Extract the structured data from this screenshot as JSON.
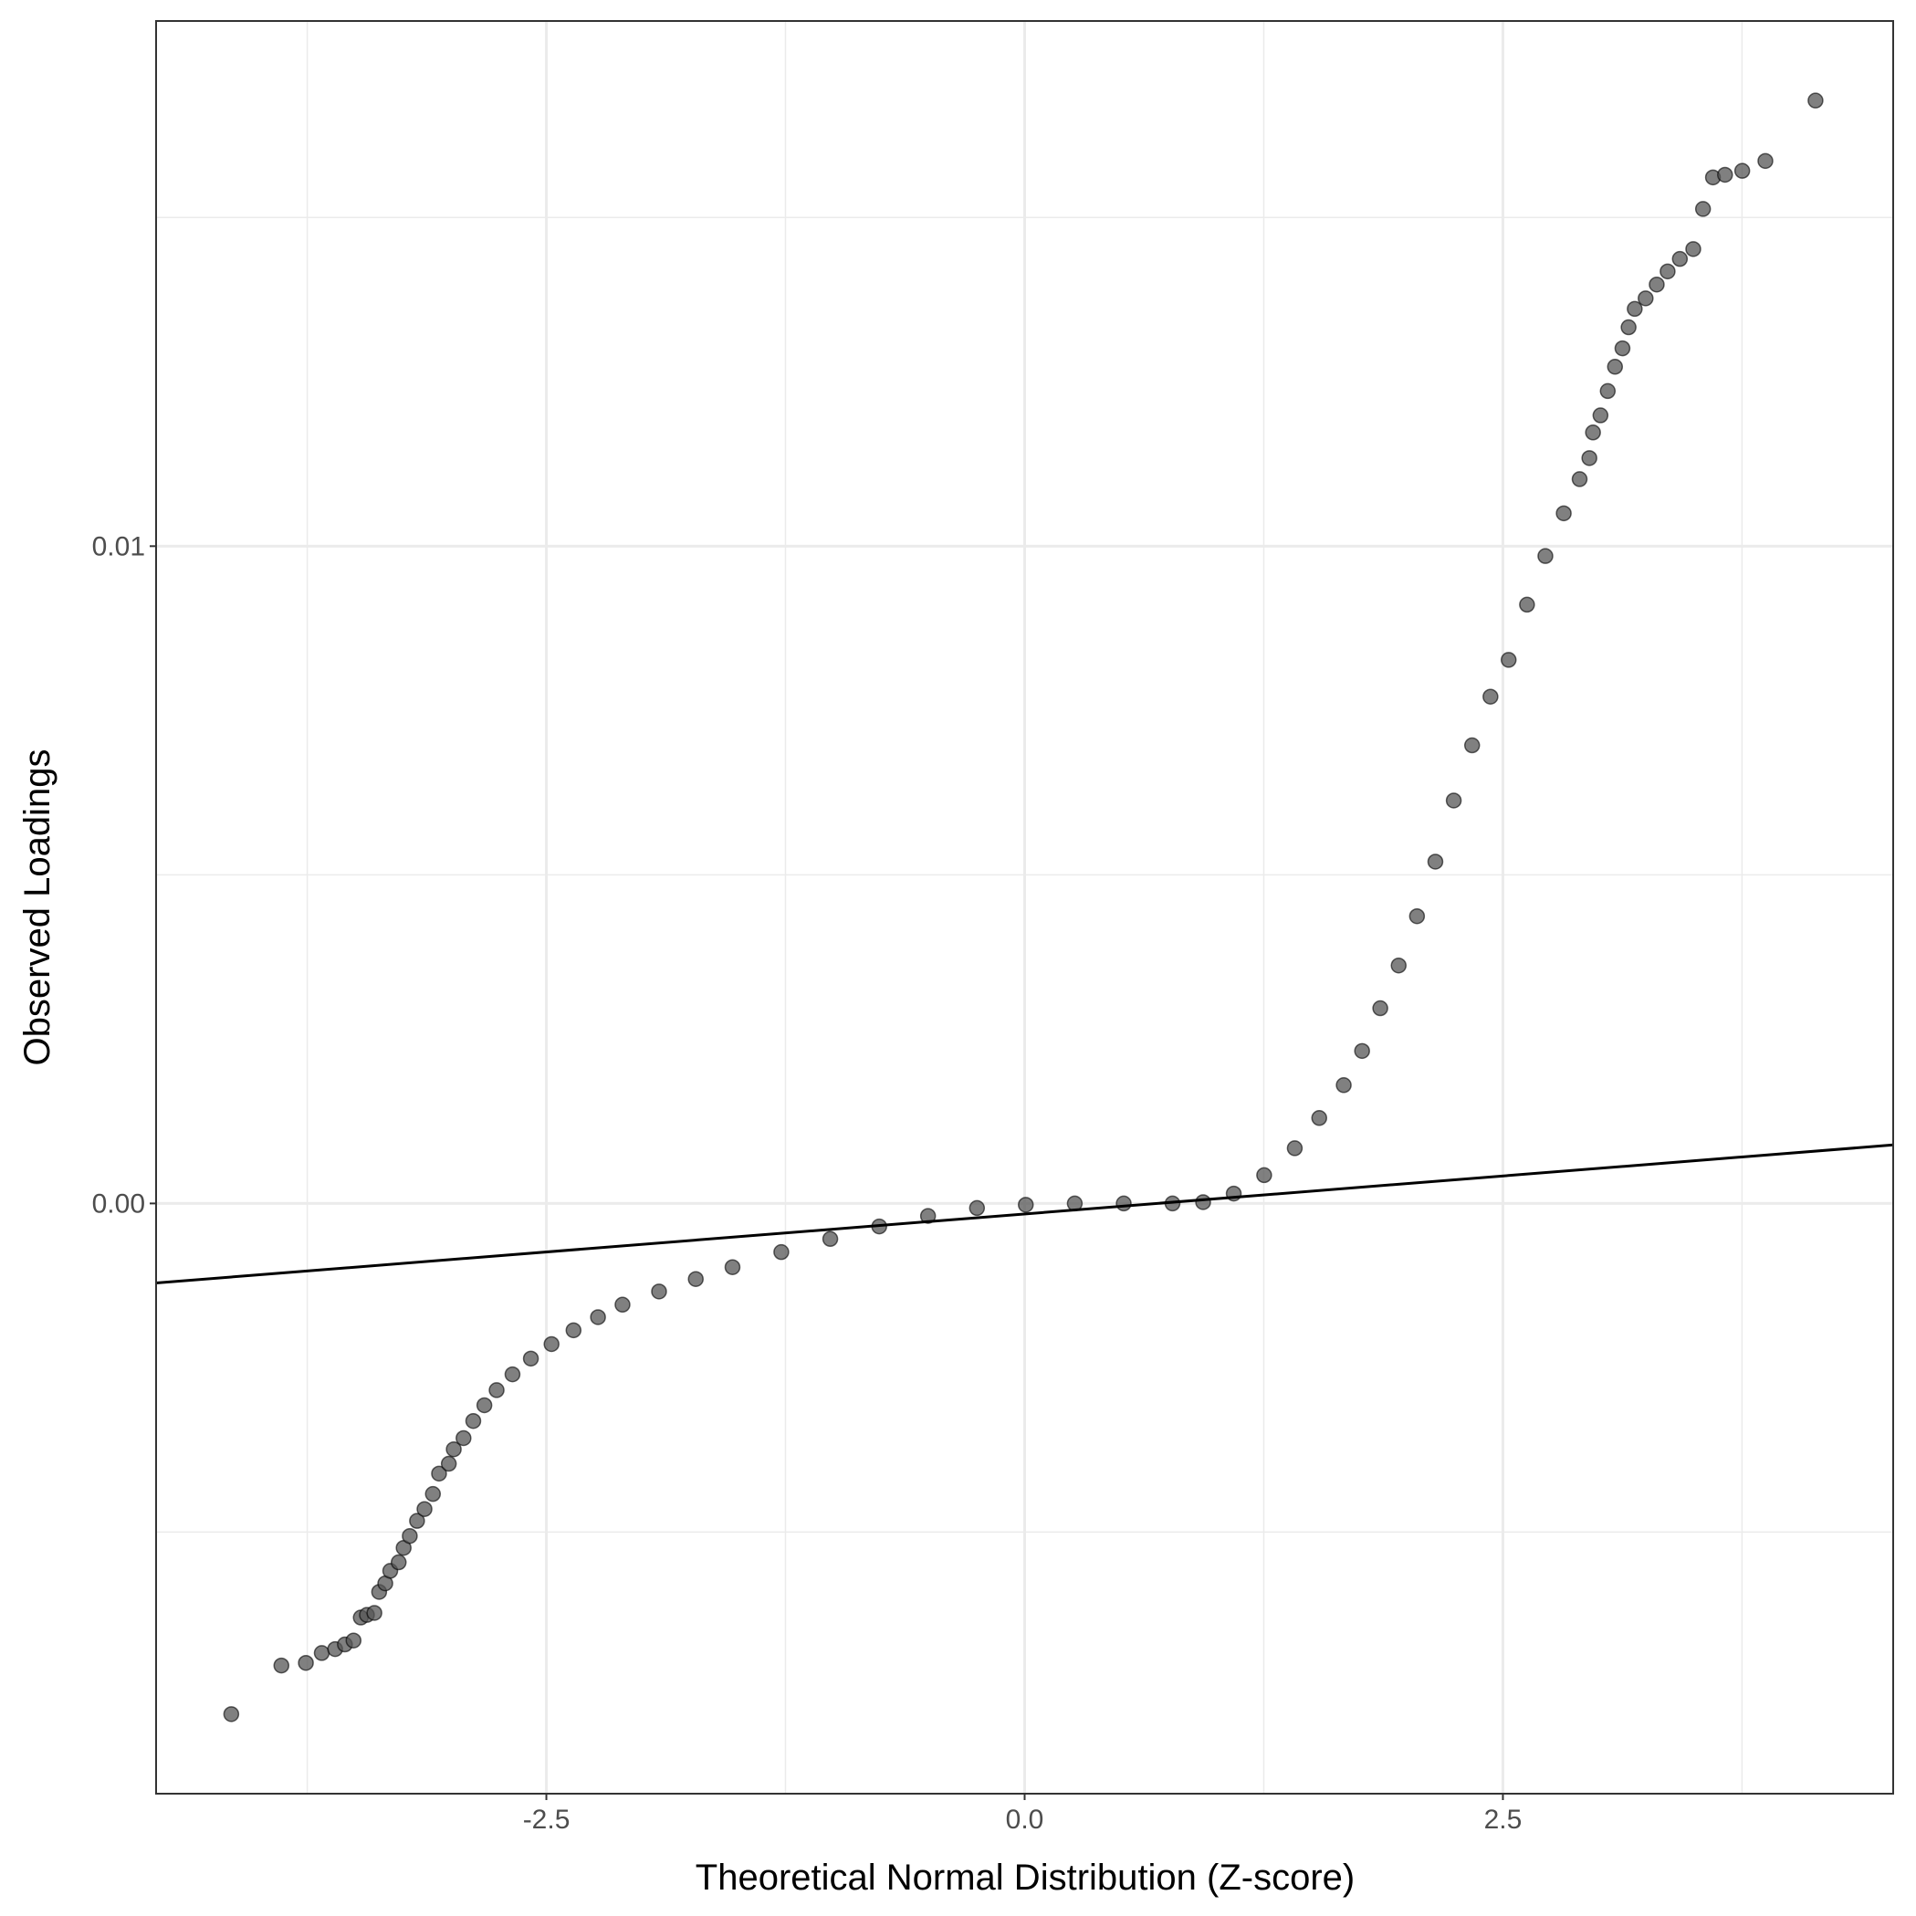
{
  "chart_data": {
    "type": "scatter",
    "x_label": "Theoretical Normal Distribution (Z-score)",
    "y_label": "Observed Loadings",
    "xlim": [
      -4.54,
      4.54
    ],
    "ylim": [
      -0.00898,
      0.01799
    ],
    "xticks": [
      -2.5,
      {
        "value": 0,
        "label": "0.0"
      },
      2.5
    ],
    "yticks": [
      {
        "value": 0,
        "label": "0.00"
      },
      0.01
    ],
    "x_minor_grid": [
      -3.75,
      -1.25,
      1.25,
      3.75
    ],
    "y_minor_grid": [
      -0.005,
      0.005,
      0.015
    ],
    "grid": true,
    "color": "#555555",
    "x": [
      -4.147,
      -3.885,
      -3.757,
      -3.674,
      -3.604,
      -3.553,
      -3.508,
      -3.47,
      -3.438,
      -3.399,
      -3.374,
      -3.342,
      -3.316,
      -3.272,
      -3.246,
      -3.214,
      -3.176,
      -3.137,
      -3.093,
      -3.061,
      -3.01,
      -2.984,
      -2.933,
      -2.882,
      -2.824,
      -2.76,
      -2.677,
      -2.581,
      -2.473,
      -2.358,
      -2.23,
      -2.102,
      -1.911,
      -1.719,
      -1.527,
      -1.272,
      -1.016,
      -0.76,
      -0.505,
      -0.249,
      0.006,
      0.262,
      0.518,
      0.773,
      0.933,
      1.093,
      1.252,
      1.412,
      1.54,
      1.668,
      1.764,
      1.859,
      1.955,
      2.051,
      2.147,
      2.243,
      2.339,
      2.435,
      2.53,
      2.626,
      2.722,
      2.818,
      2.901,
      2.952,
      2.971,
      3.01,
      3.048,
      3.086,
      3.125,
      3.157,
      3.189,
      3.246,
      3.304,
      3.361,
      3.425,
      3.495,
      3.546,
      3.598,
      3.661,
      3.751,
      3.872,
      4.134
    ],
    "values": [
      -0.00777,
      -0.00703,
      -0.00699,
      -0.00684,
      -0.00678,
      -0.00671,
      -0.00665,
      -0.0063,
      -0.00626,
      -0.00623,
      -0.00591,
      -0.00578,
      -0.00559,
      -0.00546,
      -0.00524,
      -0.00506,
      -0.00483,
      -0.00465,
      -0.00442,
      -0.00411,
      -0.00396,
      -0.00374,
      -0.00357,
      -0.00331,
      -0.00307,
      -0.00284,
      -0.0026,
      -0.00236,
      -0.00214,
      -0.00193,
      -0.00173,
      -0.00154,
      -0.00134,
      -0.00115,
      -0.00097,
      -0.00074,
      -0.00054,
      -0.00035,
      -0.00019,
      -7e-05,
      -2e-05,
      0,
      0,
      0,
      2e-05,
      0.00015,
      0.00043,
      0.00084,
      0.0013,
      0.0018,
      0.00232,
      0.00297,
      0.00362,
      0.00437,
      0.0052,
      0.00613,
      0.00697,
      0.00771,
      0.00827,
      0.00911,
      0.00985,
      0.0105,
      0.01102,
      0.01134,
      0.01173,
      0.01199,
      0.01236,
      0.01273,
      0.01301,
      0.01333,
      0.01361,
      0.01377,
      0.01398,
      0.01418,
      0.01437,
      0.01452,
      0.01513,
      0.01561,
      0.01565,
      0.01571,
      0.01586,
      0.01678
    ],
    "reference_line": {
      "x": [
        -4.54,
        4.54
      ],
      "values": [
        -0.00121,
        0.00089
      ],
      "color": "#000000"
    }
  }
}
